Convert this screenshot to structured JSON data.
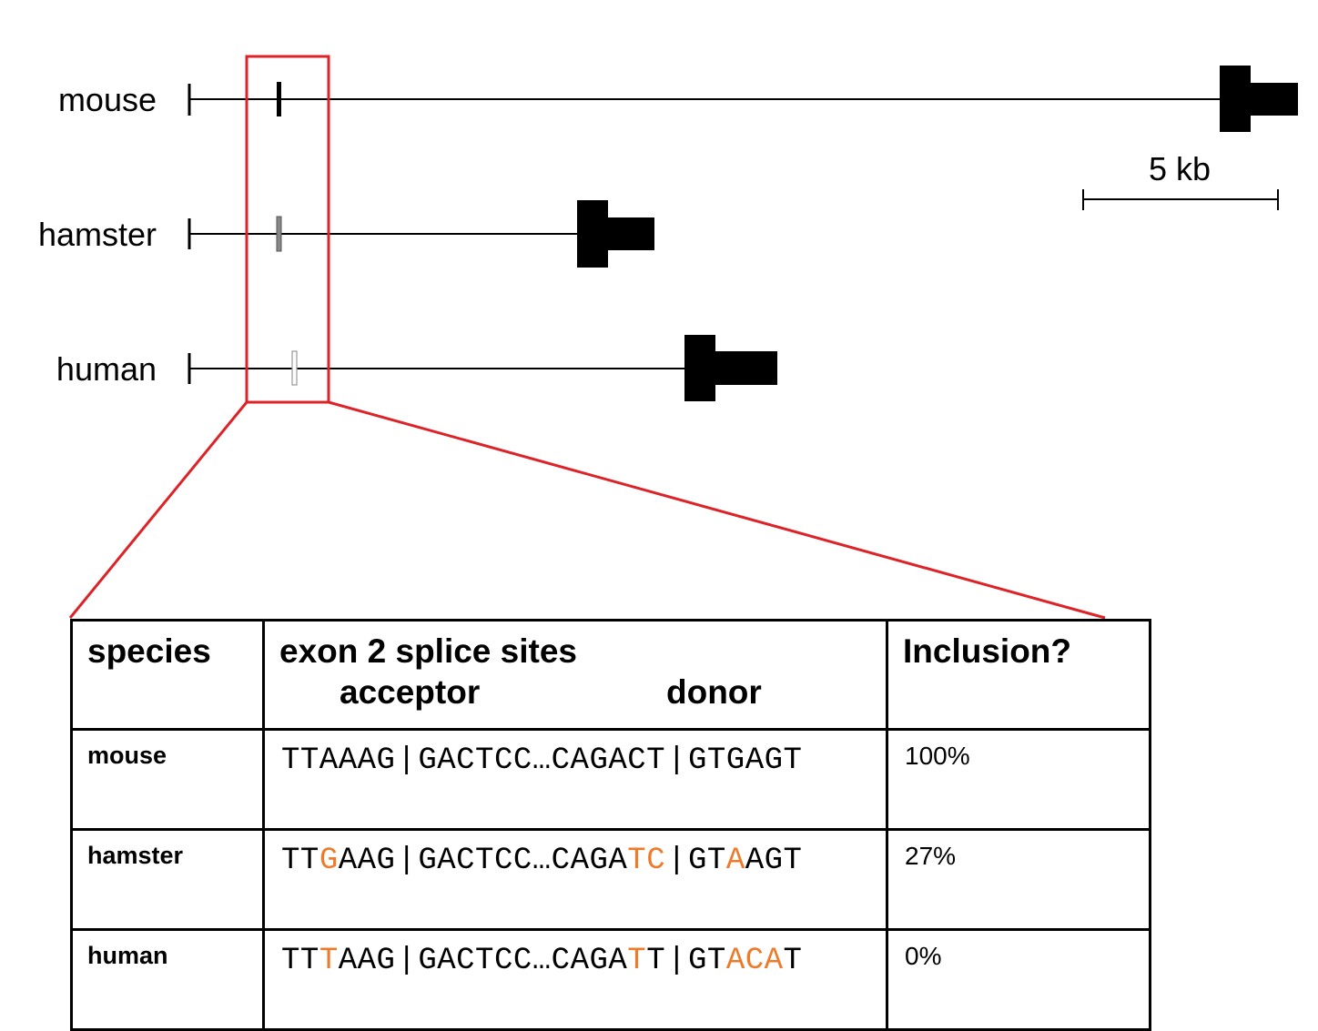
{
  "species_rows": [
    {
      "name": "mouse"
    },
    {
      "name": "hamster"
    },
    {
      "name": "human"
    }
  ],
  "scale_bar": {
    "label": "5 kb"
  },
  "colors": {
    "highlight_box": "#dd2228",
    "mismatch": "#ec7b2c",
    "exon": "#000000"
  },
  "table": {
    "headers": {
      "species": "species",
      "sites": "exon 2 splice sites",
      "acceptor": "acceptor",
      "donor": "donor",
      "inclusion": "Inclusion?"
    },
    "rows": [
      {
        "species": "mouse",
        "seq": [
          {
            "t": "TTAAAG",
            "h": false
          },
          {
            "t": "|",
            "h": false,
            "p": true
          },
          {
            "t": "GACTCC",
            "h": false
          },
          {
            "t": "…",
            "h": false
          },
          {
            "t": "CAGACT",
            "h": false
          },
          {
            "t": "|",
            "h": false,
            "p": true
          },
          {
            "t": "GTGAGT",
            "h": false
          }
        ],
        "inclusion": "100%"
      },
      {
        "species": "hamster",
        "seq": [
          {
            "t": "TT",
            "h": false
          },
          {
            "t": "G",
            "h": true
          },
          {
            "t": "AAG",
            "h": false
          },
          {
            "t": "|",
            "h": false,
            "p": true
          },
          {
            "t": "GACTCC",
            "h": false
          },
          {
            "t": "…",
            "h": false
          },
          {
            "t": "CAGA",
            "h": false
          },
          {
            "t": "TC",
            "h": true
          },
          {
            "t": "|",
            "h": false,
            "p": true
          },
          {
            "t": "GT",
            "h": false
          },
          {
            "t": "A",
            "h": true
          },
          {
            "t": "AGT",
            "h": false
          }
        ],
        "inclusion": "27%"
      },
      {
        "species": "human",
        "seq": [
          {
            "t": "TT",
            "h": false
          },
          {
            "t": "T",
            "h": true
          },
          {
            "t": "AAG",
            "h": false
          },
          {
            "t": "|",
            "h": false,
            "p": true
          },
          {
            "t": "GACTCC",
            "h": false
          },
          {
            "t": "…",
            "h": false
          },
          {
            "t": "CAGA",
            "h": false
          },
          {
            "t": "T",
            "h": true
          },
          {
            "t": "T",
            "h": false
          },
          {
            "t": "|",
            "h": false,
            "p": true
          },
          {
            "t": "GT",
            "h": false
          },
          {
            "t": "ACA",
            "h": true
          },
          {
            "t": "T",
            "h": false
          }
        ],
        "inclusion": "0%"
      }
    ]
  }
}
